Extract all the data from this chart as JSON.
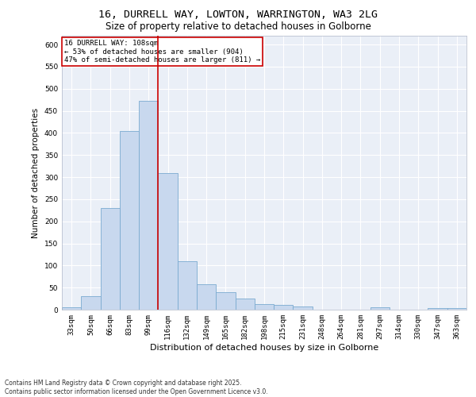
{
  "title_line1": "16, DURRELL WAY, LOWTON, WARRINGTON, WA3 2LG",
  "title_line2": "Size of property relative to detached houses in Golborne",
  "xlabel": "Distribution of detached houses by size in Golborne",
  "ylabel": "Number of detached properties",
  "bar_color": "#c8d8ee",
  "bar_edge_color": "#7aaad0",
  "categories": [
    "33sqm",
    "50sqm",
    "66sqm",
    "83sqm",
    "99sqm",
    "116sqm",
    "132sqm",
    "149sqm",
    "165sqm",
    "182sqm",
    "198sqm",
    "215sqm",
    "231sqm",
    "248sqm",
    "264sqm",
    "281sqm",
    "297sqm",
    "314sqm",
    "330sqm",
    "347sqm",
    "363sqm"
  ],
  "values": [
    5,
    30,
    230,
    405,
    473,
    310,
    110,
    57,
    40,
    25,
    13,
    11,
    8,
    0,
    0,
    0,
    5,
    0,
    0,
    3,
    3
  ],
  "vline_pos": 4.5,
  "vline_color": "#cc0000",
  "annotation_text": "16 DURRELL WAY: 108sqm\n← 53% of detached houses are smaller (904)\n47% of semi-detached houses are larger (811) →",
  "annotation_box_color": "#cc0000",
  "ylim": [
    0,
    620
  ],
  "yticks": [
    0,
    50,
    100,
    150,
    200,
    250,
    300,
    350,
    400,
    450,
    500,
    550,
    600
  ],
  "footnote": "Contains HM Land Registry data © Crown copyright and database right 2025.\nContains public sector information licensed under the Open Government Licence v3.0.",
  "background_color": "#eaeff7",
  "grid_color": "#ffffff",
  "title_fontsize": 9.5,
  "subtitle_fontsize": 8.5,
  "axis_label_fontsize": 7.5,
  "tick_fontsize": 6.5,
  "annotation_fontsize": 6.5,
  "footnote_fontsize": 5.5
}
